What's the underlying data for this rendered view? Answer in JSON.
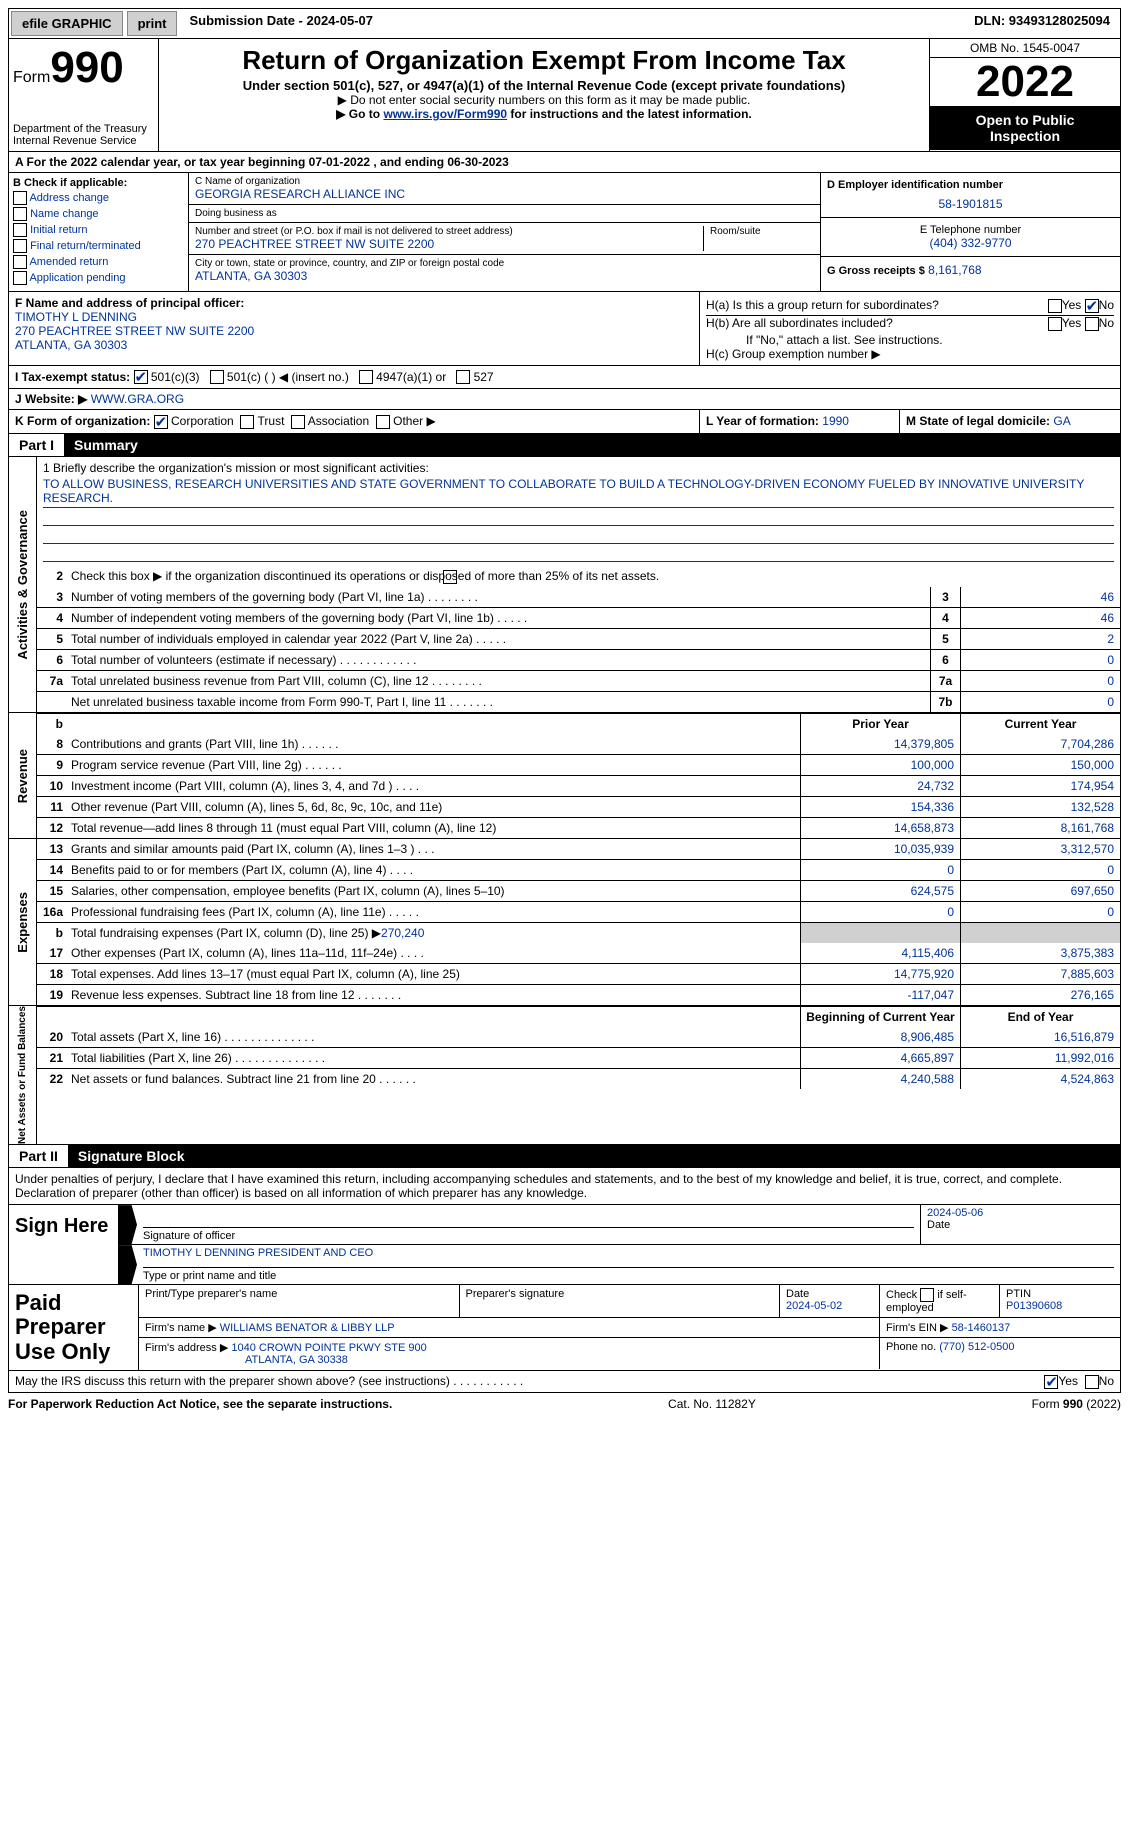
{
  "topbar": {
    "efile": "efile GRAPHIC",
    "print": "print",
    "submission": "Submission Date - 2024-05-07",
    "dln": "DLN: 93493128025094"
  },
  "header": {
    "form": "Form",
    "num": "990",
    "dept": "Department of the Treasury",
    "irs": "Internal Revenue Service",
    "title": "Return of Organization Exempt From Income Tax",
    "sub1": "Under section 501(c), 527, or 4947(a)(1) of the Internal Revenue Code (except private foundations)",
    "sub2": "▶ Do not enter social security numbers on this form as it may be made public.",
    "sub3_pre": "▶ Go to ",
    "sub3_link": "www.irs.gov/Form990",
    "sub3_post": " for instructions and the latest information.",
    "omb": "OMB No. 1545-0047",
    "year": "2022",
    "open1": "Open to Public",
    "open2": "Inspection"
  },
  "row_a": "A For the 2022 calendar year, or tax year beginning 07-01-2022    , and ending 06-30-2023",
  "col_b": {
    "title": "B Check if applicable:",
    "opts": [
      "Address change",
      "Name change",
      "Initial return",
      "Final return/terminated",
      "Amended return",
      "Application pending"
    ]
  },
  "col_c": {
    "name_lbl": "C Name of organization",
    "name": "GEORGIA RESEARCH ALLIANCE INC",
    "dba_lbl": "Doing business as",
    "dba": "",
    "addr_lbl": "Number and street (or P.O. box if mail is not delivered to street address)",
    "addr": "270 PEACHTREE STREET NW SUITE 2200",
    "room_lbl": "Room/suite",
    "room": "",
    "city_lbl": "City or town, state or province, country, and ZIP or foreign postal code",
    "city": "ATLANTA, GA  30303"
  },
  "col_d": {
    "ein_lbl": "D Employer identification number",
    "ein": "58-1901815",
    "phone_lbl": "E Telephone number",
    "phone": "(404) 332-9770",
    "gross_lbl": "G Gross receipts $",
    "gross": "8,161,768"
  },
  "row_f": {
    "lbl": "F Name and address of principal officer:",
    "name": "TIMOTHY L DENNING",
    "addr1": "270 PEACHTREE STREET NW SUITE 2200",
    "addr2": "ATLANTA, GA  30303"
  },
  "row_h": {
    "ha": "H(a)  Is this a group return for subordinates?",
    "hb": "H(b)  Are all subordinates included?",
    "hb_note": "If \"No,\" attach a list. See instructions.",
    "hc": "H(c)  Group exemption number ▶",
    "yes": "Yes",
    "no": "No"
  },
  "row_i": {
    "lbl": "I    Tax-exempt status:",
    "o1": "501(c)(3)",
    "o2": "501(c) (  ) ◀ (insert no.)",
    "o3": "4947(a)(1) or",
    "o4": "527"
  },
  "row_j": {
    "lbl": "J   Website: ▶",
    "val": " WWW.GRA.ORG"
  },
  "row_k": {
    "lbl": "K Form of organization:",
    "o1": "Corporation",
    "o2": "Trust",
    "o3": "Association",
    "o4": "Other ▶",
    "l_lbl": "L Year of formation:",
    "l_val": "1990",
    "m_lbl": "M State of legal domicile:",
    "m_val": "GA"
  },
  "part1": {
    "num": "Part I",
    "title": "Summary"
  },
  "mission": {
    "lbl": "1   Briefly describe the organization's mission or most significant activities:",
    "text": "TO ALLOW BUSINESS, RESEARCH UNIVERSITIES AND STATE GOVERNMENT TO COLLABORATE TO BUILD A TECHNOLOGY-DRIVEN ECONOMY FUELED BY INNOVATIVE UNIVERSITY RESEARCH."
  },
  "line2": "Check this box ▶    if the organization discontinued its operations or disposed of more than 25% of its net assets.",
  "lines_single": [
    {
      "n": "3",
      "t": "Number of voting members of the governing body (Part VI, line 1a)  .    .    .    .    .    .    .    .",
      "c": "3",
      "v": "46"
    },
    {
      "n": "4",
      "t": "Number of independent voting members of the governing body (Part VI, line 1b)  .    .    .    .    .",
      "c": "4",
      "v": "46"
    },
    {
      "n": "5",
      "t": "Total number of individuals employed in calendar year 2022 (Part V, line 2a)  .    .    .    .    .",
      "c": "5",
      "v": "2"
    },
    {
      "n": "6",
      "t": "Total number of volunteers (estimate if necessary)    .    .    .    .    .    .    .    .    .    .    .    .",
      "c": "6",
      "v": "0"
    },
    {
      "n": "7a",
      "t": "Total unrelated business revenue from Part VIII, column (C), line 12  .    .    .    .    .    .    .    .",
      "c": "7a",
      "v": "0"
    },
    {
      "n": "",
      "t": "Net unrelated business taxable income from Form 990-T, Part I, line 11  .    .    .    .    .    .    .",
      "c": "7b",
      "v": "0"
    }
  ],
  "dual_hdr": {
    "b": "b",
    "prior": "Prior Year",
    "current": "Current Year"
  },
  "revenue": [
    {
      "n": "8",
      "t": "Contributions and grants (Part VIII, line 1h)  .    .    .    .    .    .",
      "p": "14,379,805",
      "c": "7,704,286"
    },
    {
      "n": "9",
      "t": "Program service revenue (Part VIII, line 2g)  .    .    .    .    .    .",
      "p": "100,000",
      "c": "150,000"
    },
    {
      "n": "10",
      "t": "Investment income (Part VIII, column (A), lines 3, 4, and 7d )  .    .    .    .",
      "p": "24,732",
      "c": "174,954"
    },
    {
      "n": "11",
      "t": "Other revenue (Part VIII, column (A), lines 5, 6d, 8c, 9c, 10c, and 11e)",
      "p": "154,336",
      "c": "132,528"
    },
    {
      "n": "12",
      "t": "Total revenue—add lines 8 through 11 (must equal Part VIII, column (A), line 12)",
      "p": "14,658,873",
      "c": "8,161,768"
    }
  ],
  "expenses": [
    {
      "n": "13",
      "t": "Grants and similar amounts paid (Part IX, column (A), lines 1–3 )  .    .    .",
      "p": "10,035,939",
      "c": "3,312,570"
    },
    {
      "n": "14",
      "t": "Benefits paid to or for members (Part IX, column (A), line 4)  .    .    .    .",
      "p": "0",
      "c": "0"
    },
    {
      "n": "15",
      "t": "Salaries, other compensation, employee benefits (Part IX, column (A), lines 5–10)",
      "p": "624,575",
      "c": "697,650"
    },
    {
      "n": "16a",
      "t": "Professional fundraising fees (Part IX, column (A), line 11e)  .    .    .    .    .",
      "p": "0",
      "c": "0"
    }
  ],
  "line_b": {
    "n": "b",
    "t": "Total fundraising expenses (Part IX, column (D), line 25) ▶",
    "v": "270,240"
  },
  "expenses2": [
    {
      "n": "17",
      "t": "Other expenses (Part IX, column (A), lines 11a–11d, 11f–24e)  .    .    .    .",
      "p": "4,115,406",
      "c": "3,875,383"
    },
    {
      "n": "18",
      "t": "Total expenses. Add lines 13–17 (must equal Part IX, column (A), line 25)",
      "p": "14,775,920",
      "c": "7,885,603"
    },
    {
      "n": "19",
      "t": "Revenue less expenses. Subtract line 18 from line 12  .    .    .    .    .    .    .",
      "p": "-117,047",
      "c": "276,165"
    }
  ],
  "na_hdr": {
    "begin": "Beginning of Current Year",
    "end": "End of Year"
  },
  "netassets": [
    {
      "n": "20",
      "t": "Total assets (Part X, line 16)  .    .    .    .    .    .    .    .    .    .    .    .    .    .",
      "p": "8,906,485",
      "c": "16,516,879"
    },
    {
      "n": "21",
      "t": "Total liabilities (Part X, line 26)  .    .    .    .    .    .    .    .    .    .    .    .    .    .",
      "p": "4,665,897",
      "c": "11,992,016"
    },
    {
      "n": "22",
      "t": "Net assets or fund balances. Subtract line 21 from line 20  .    .    .    .    .    .",
      "p": "4,240,588",
      "c": "4,524,863"
    }
  ],
  "side": {
    "ag": "Activities & Governance",
    "rev": "Revenue",
    "exp": "Expenses",
    "na": "Net Assets or Fund Balances"
  },
  "part2": {
    "num": "Part II",
    "title": "Signature Block"
  },
  "penalty": "Under penalties of perjury, I declare that I have examined this return, including accompanying schedules and statements, and to the best of my knowledge and belief, it is true, correct, and complete. Declaration of preparer (other than officer) is based on all information of which preparer has any knowledge.",
  "sign": {
    "title": "Sign Here",
    "sig_lbl": "Signature of officer",
    "date": "2024-05-06",
    "date_lbl": "Date",
    "name": "TIMOTHY L DENNING  PRESIDENT AND CEO",
    "name_lbl": "Type or print name and title"
  },
  "prep": {
    "title": "Paid Preparer Use Only",
    "h1": "Print/Type preparer's name",
    "h2": "Preparer's signature",
    "h3_lbl": "Date",
    "h3": "2024-05-02",
    "h4_lbl": "Check",
    "h4_suffix": "if self-employed",
    "h5_lbl": "PTIN",
    "h5": "P01390608",
    "firm_lbl": "Firm's name    ▶",
    "firm": "WILLIAMS BENATOR & LIBBY LLP",
    "ein_lbl": "Firm's EIN ▶",
    "ein": "58-1460137",
    "addr_lbl": "Firm's address ▶",
    "addr1": "1040 CROWN POINTE PKWY STE 900",
    "addr2": "ATLANTA, GA  30338",
    "phone_lbl": "Phone no.",
    "phone": "(770) 512-0500"
  },
  "may": "May the IRS discuss this return with the preparer shown above? (see instructions)  .    .    .    .    .    .    .    .    .    .    .",
  "footer": {
    "left": "For Paperwork Reduction Act Notice, see the separate instructions.",
    "mid": "Cat. No. 11282Y",
    "right_pre": "Form ",
    "right_form": "990",
    "right_post": " (2022)"
  }
}
